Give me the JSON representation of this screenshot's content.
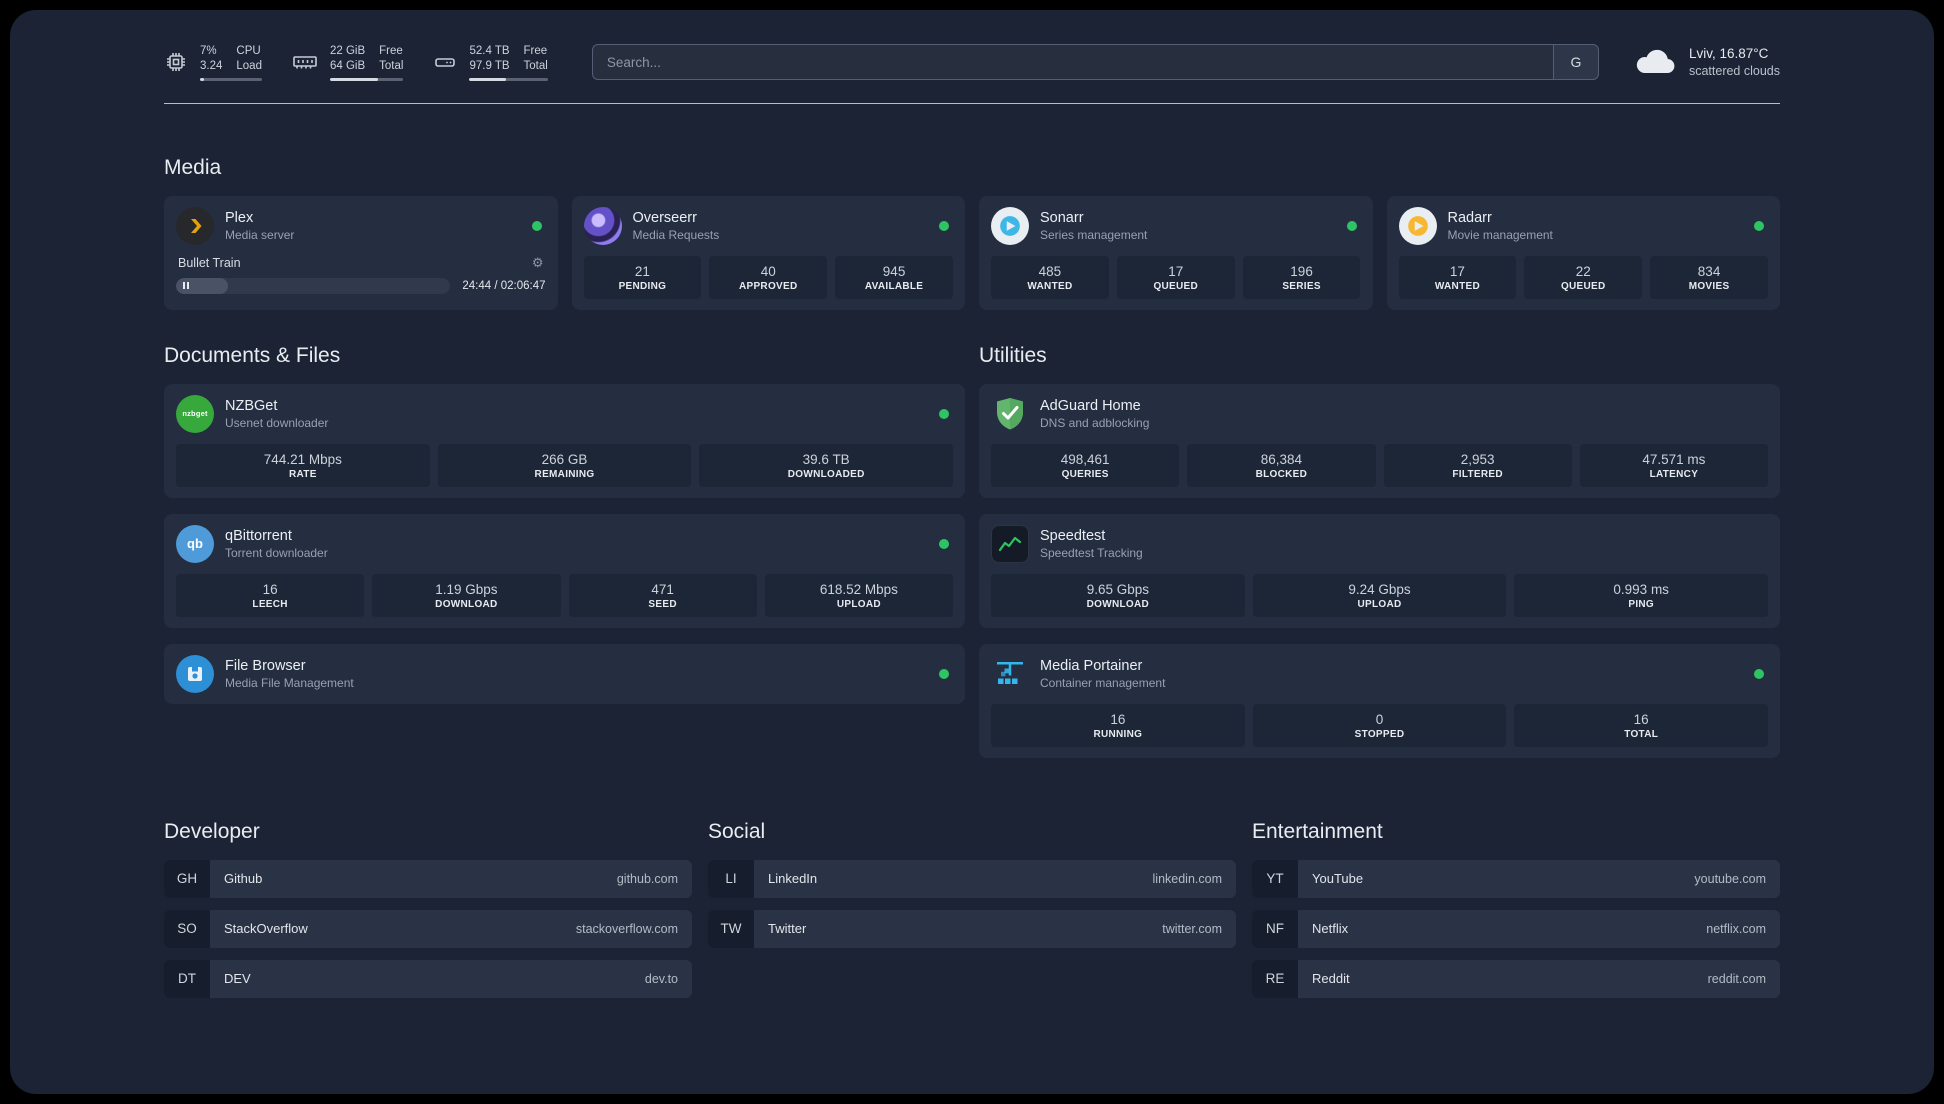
{
  "topbar": {
    "resources": [
      {
        "name": "cpu",
        "value_top": "7%",
        "value_bottom": "3.24",
        "label_top": "CPU",
        "label_bottom": "Load",
        "progress": 7
      },
      {
        "name": "memory",
        "value_top": "22 GiB",
        "value_bottom": "64 GiB",
        "label_top": "Free",
        "label_bottom": "Total",
        "progress": 66
      },
      {
        "name": "disk",
        "value_top": "52.4 TB",
        "value_bottom": "97.9 TB",
        "label_top": "Free",
        "label_bottom": "Total",
        "progress": 47
      }
    ],
    "search": {
      "placeholder": "Search...",
      "provider": "G"
    },
    "weather": {
      "location": "Lviv, 16.87°C",
      "condition": "scattered clouds"
    }
  },
  "media": {
    "title": "Media",
    "plex": {
      "name": "Plex",
      "desc": "Media server",
      "status": "online",
      "player": {
        "track": "Bullet Train",
        "time": "24:44 / 02:06:47",
        "progress": 19
      }
    },
    "overseerr": {
      "name": "Overseerr",
      "desc": "Media Requests",
      "status": "online",
      "stats": [
        {
          "value": "21",
          "label": "PENDING"
        },
        {
          "value": "40",
          "label": "APPROVED"
        },
        {
          "value": "945",
          "label": "AVAILABLE"
        }
      ]
    },
    "sonarr": {
      "name": "Sonarr",
      "desc": "Series management",
      "status": "online",
      "stats": [
        {
          "value": "485",
          "label": "WANTED"
        },
        {
          "value": "17",
          "label": "QUEUED"
        },
        {
          "value": "196",
          "label": "SERIES"
        }
      ]
    },
    "radarr": {
      "name": "Radarr",
      "desc": "Movie management",
      "status": "online",
      "stats": [
        {
          "value": "17",
          "label": "WANTED"
        },
        {
          "value": "22",
          "label": "QUEUED"
        },
        {
          "value": "834",
          "label": "MOVIES"
        }
      ]
    }
  },
  "documents": {
    "title": "Documents & Files",
    "nzbget": {
      "name": "NZBGet",
      "desc": "Usenet downloader",
      "status": "online",
      "stats": [
        {
          "value": "744.21 Mbps",
          "label": "RATE"
        },
        {
          "value": "266 GB",
          "label": "REMAINING"
        },
        {
          "value": "39.6 TB",
          "label": "DOWNLOADED"
        }
      ]
    },
    "qbittorrent": {
      "name": "qBittorrent",
      "desc": "Torrent downloader",
      "status": "online",
      "stats": [
        {
          "value": "16",
          "label": "LEECH"
        },
        {
          "value": "1.19 Gbps",
          "label": "DOWNLOAD"
        },
        {
          "value": "471",
          "label": "SEED"
        },
        {
          "value": "618.52 Mbps",
          "label": "UPLOAD"
        }
      ]
    },
    "filebrowser": {
      "name": "File Browser",
      "desc": "Media File Management",
      "status": "online"
    }
  },
  "utilities": {
    "title": "Utilities",
    "adguard": {
      "name": "AdGuard Home",
      "desc": "DNS and adblocking",
      "stats": [
        {
          "value": "498,461",
          "label": "QUERIES"
        },
        {
          "value": "86,384",
          "label": "BLOCKED"
        },
        {
          "value": "2,953",
          "label": "FILTERED"
        },
        {
          "value": "47.571 ms",
          "label": "LATENCY"
        }
      ]
    },
    "speedtest": {
      "name": "Speedtest",
      "desc": "Speedtest Tracking",
      "stats": [
        {
          "value": "9.65 Gbps",
          "label": "DOWNLOAD"
        },
        {
          "value": "9.24 Gbps",
          "label": "UPLOAD"
        },
        {
          "value": "0.993 ms",
          "label": "PING"
        }
      ]
    },
    "portainer": {
      "name": "Media Portainer",
      "desc": "Container management",
      "status": "online",
      "stats": [
        {
          "value": "16",
          "label": "RUNNING"
        },
        {
          "value": "0",
          "label": "STOPPED"
        },
        {
          "value": "16",
          "label": "TOTAL"
        }
      ]
    }
  },
  "bookmarks": {
    "groups": [
      {
        "title": "Developer",
        "items": [
          {
            "abbr": "GH",
            "name": "Github",
            "url": "github.com"
          },
          {
            "abbr": "SO",
            "name": "StackOverflow",
            "url": "stackoverflow.com"
          },
          {
            "abbr": "DT",
            "name": "DEV",
            "url": "dev.to"
          }
        ]
      },
      {
        "title": "Social",
        "items": [
          {
            "abbr": "LI",
            "name": "LinkedIn",
            "url": "linkedin.com"
          },
          {
            "abbr": "TW",
            "name": "Twitter",
            "url": "twitter.com"
          }
        ]
      },
      {
        "title": "Entertainment",
        "items": [
          {
            "abbr": "YT",
            "name": "YouTube",
            "url": "youtube.com"
          },
          {
            "abbr": "NF",
            "name": "Netflix",
            "url": "netflix.com"
          },
          {
            "abbr": "RE",
            "name": "Reddit",
            "url": "reddit.com"
          }
        ]
      }
    ]
  },
  "icons": {
    "gear": "⚙",
    "nzbget_text": "nzbget",
    "qbittorrent_text": "qb"
  }
}
